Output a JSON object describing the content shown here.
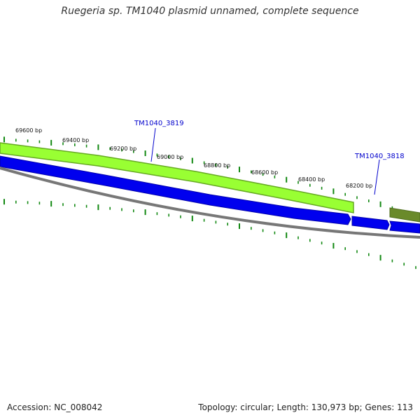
{
  "title": "Ruegeria sp. TM1040 plasmid unnamed, complete sequence",
  "colors": {
    "forward_gene": "#99ff33",
    "forward_gene_border": "#66aa22",
    "forward_gene_dark": "#6a8a2a",
    "reverse_gene": "#0000ee",
    "backbone": "#777777",
    "tick": "#118811",
    "label": "#0000cc"
  },
  "ticks": {
    "labels": [
      "69600 bp",
      "69400 bp",
      "69200 bp",
      "69000 bp",
      "68800 bp",
      "68600 bp",
      "68400 bp",
      "68200 bp"
    ]
  },
  "genes": [
    {
      "label": "TM1040_3819"
    },
    {
      "label": "TM1040_3818"
    }
  ],
  "footer": {
    "accession": "Accession: NC_008042",
    "summary": "Topology: circular; Length: 130,973 bp; Genes: 113"
  }
}
